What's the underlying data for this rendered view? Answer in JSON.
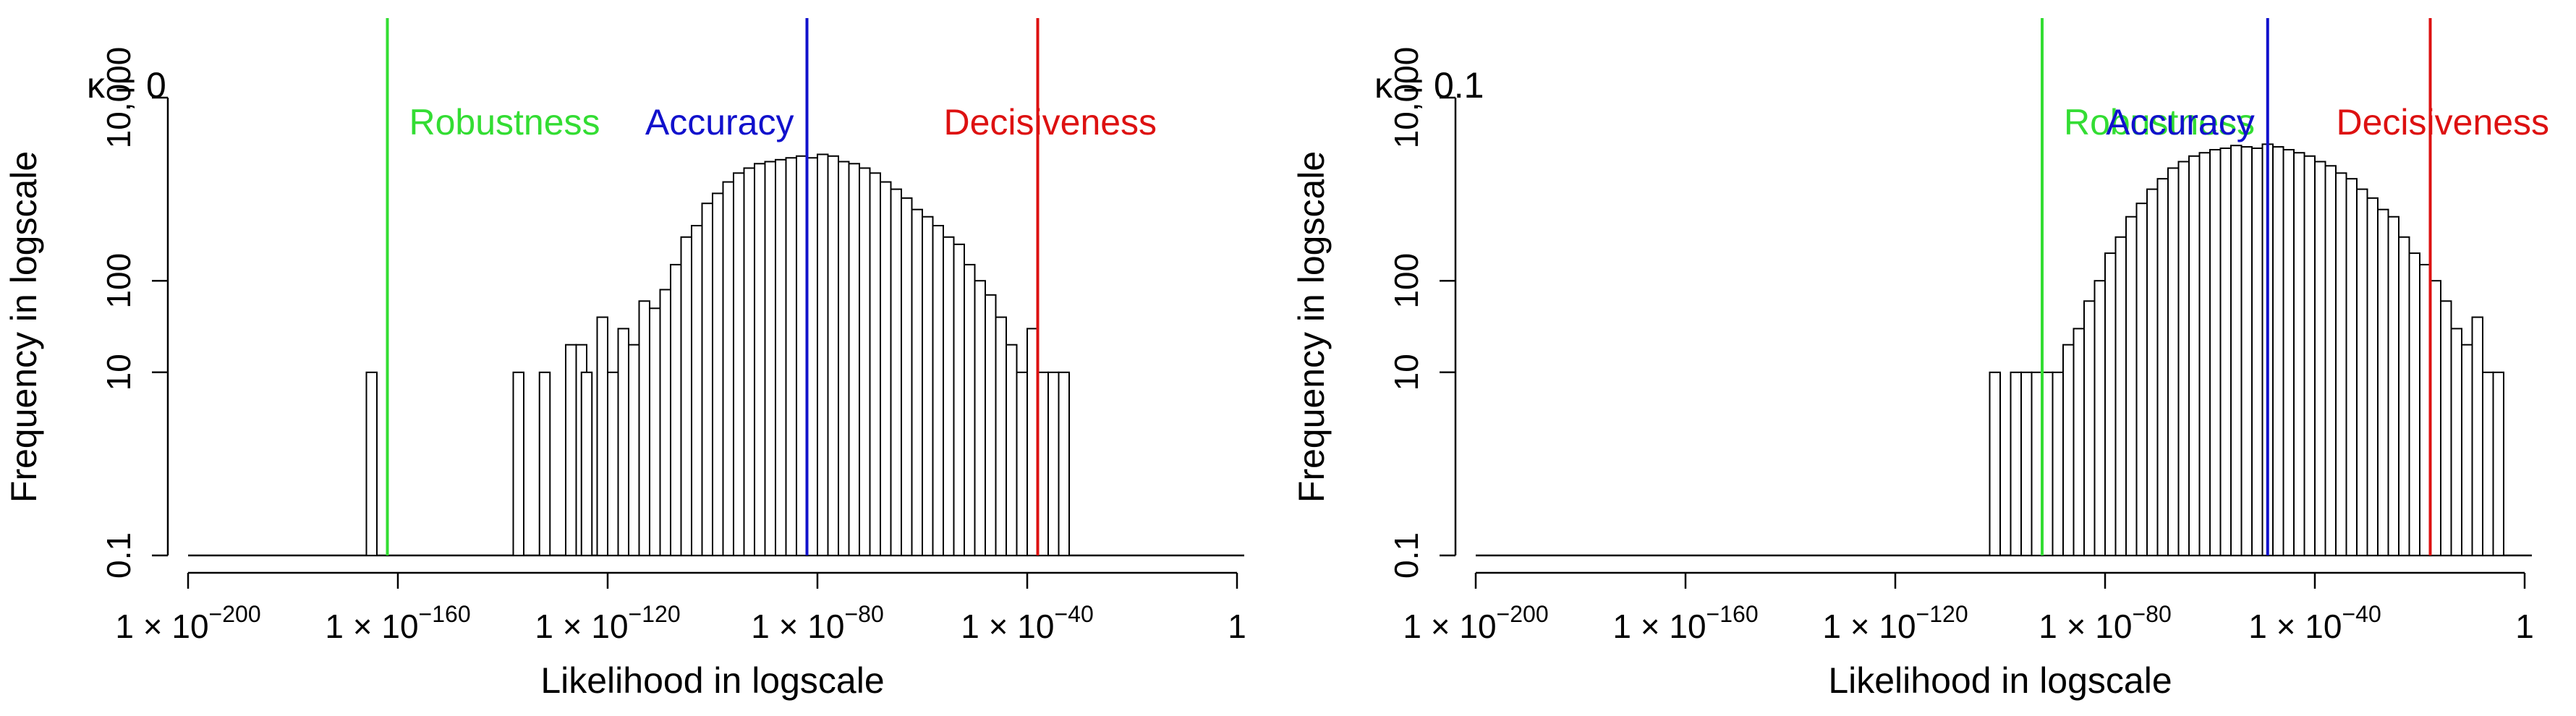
{
  "chart_data": [
    {
      "type": "bar",
      "panel_label": "κ = 0",
      "title": "",
      "xlabel": "Likelihood in logscale",
      "ylabel": "Frequency in logscale",
      "xscale": "log10",
      "yscale": "log10",
      "xlim_exponent": [
        -200,
        0
      ],
      "ylim_exponent": [
        -1,
        4
      ],
      "bin_width_exponent": 2,
      "x_ticks": [
        {
          "exponent": -200,
          "label": "1 × 10",
          "sup": "−200"
        },
        {
          "exponent": -160,
          "label": "1 × 10",
          "sup": "−160"
        },
        {
          "exponent": -120,
          "label": "1 × 10",
          "sup": "−120"
        },
        {
          "exponent": -80,
          "label": "1 × 10",
          "sup": "−80"
        },
        {
          "exponent": -40,
          "label": "1 × 10",
          "sup": "−40"
        },
        {
          "exponent": 0,
          "label": "1",
          "sup": ""
        }
      ],
      "y_ticks": [
        {
          "value": 0.1,
          "label": "0.1"
        },
        {
          "value": 10,
          "label": "10"
        },
        {
          "value": 100,
          "label": "100"
        },
        {
          "value": 10000,
          "label": "10,000"
        }
      ],
      "baseline": 0.1,
      "bin_start_exponents": [
        -166,
        -138,
        -133,
        -128,
        -126,
        -125,
        -122,
        -120,
        -118,
        -116,
        -114,
        -112,
        -110,
        -108,
        -106,
        -104,
        -102,
        -100,
        -98,
        -96,
        -94,
        -92,
        -90,
        -88,
        -86,
        -84,
        -82,
        -80,
        -78,
        -76,
        -74,
        -72,
        -70,
        -68,
        -66,
        -64,
        -62,
        -60,
        -58,
        -56,
        -54,
        -52,
        -50,
        -48,
        -46,
        -44,
        -42,
        -40,
        -38,
        -36,
        -34
      ],
      "counts": [
        10,
        10,
        10,
        20,
        20,
        10,
        40,
        10,
        30,
        20,
        60,
        50,
        80,
        150,
        300,
        400,
        700,
        900,
        1200,
        1500,
        1700,
        1900,
        2000,
        2100,
        2200,
        2300,
        2200,
        2400,
        2300,
        2000,
        1900,
        1700,
        1500,
        1200,
        1000,
        800,
        600,
        500,
        400,
        300,
        250,
        150,
        100,
        70,
        40,
        20,
        10,
        30,
        10,
        10,
        10
      ],
      "vlines": [
        {
          "name": "Robustness",
          "color": "#33dd33",
          "exponent": -162
        },
        {
          "name": "Accuracy",
          "color": "#1111cc",
          "exponent": -82
        },
        {
          "name": "Decisiveness",
          "color": "#dd1111",
          "exponent": -38
        }
      ]
    },
    {
      "type": "bar",
      "panel_label": "κ = 0.1",
      "title": "",
      "xlabel": "Likelihood in logscale",
      "ylabel": "Frequency in logscale",
      "xscale": "log10",
      "yscale": "log10",
      "xlim_exponent": [
        -200,
        0
      ],
      "ylim_exponent": [
        -1,
        4
      ],
      "bin_width_exponent": 2,
      "x_ticks": [
        {
          "exponent": -200,
          "label": "1 × 10",
          "sup": "−200"
        },
        {
          "exponent": -160,
          "label": "1 × 10",
          "sup": "−160"
        },
        {
          "exponent": -120,
          "label": "1 × 10",
          "sup": "−120"
        },
        {
          "exponent": -80,
          "label": "1 × 10",
          "sup": "−80"
        },
        {
          "exponent": -40,
          "label": "1 × 10",
          "sup": "−40"
        },
        {
          "exponent": 0,
          "label": "1",
          "sup": ""
        }
      ],
      "y_ticks": [
        {
          "value": 0.1,
          "label": "0.1"
        },
        {
          "value": 10,
          "label": "10"
        },
        {
          "value": 100,
          "label": "100"
        },
        {
          "value": 10000,
          "label": "10,000"
        }
      ],
      "baseline": 0.1,
      "bin_start_exponents": [
        -102,
        -98,
        -96,
        -94,
        -92,
        -90,
        -88,
        -86,
        -84,
        -82,
        -80,
        -78,
        -76,
        -74,
        -72,
        -70,
        -68,
        -66,
        -64,
        -62,
        -60,
        -58,
        -56,
        -54,
        -52,
        -50,
        -48,
        -46,
        -44,
        -42,
        -40,
        -38,
        -36,
        -34,
        -32,
        -30,
        -28,
        -26,
        -24,
        -22,
        -20,
        -18,
        -16,
        -14,
        -12,
        -10,
        -8,
        -6
      ],
      "counts": [
        10,
        10,
        10,
        10,
        10,
        10,
        20,
        30,
        60,
        100,
        200,
        300,
        500,
        700,
        1000,
        1300,
        1700,
        2000,
        2300,
        2500,
        2700,
        2800,
        3000,
        2900,
        2800,
        3100,
        2900,
        2700,
        2500,
        2300,
        2000,
        1800,
        1500,
        1300,
        1000,
        800,
        600,
        500,
        300,
        200,
        150,
        100,
        60,
        30,
        20,
        40,
        10,
        10
      ],
      "vlines": [
        {
          "name": "Robustness",
          "color": "#33dd33",
          "exponent": -92
        },
        {
          "name": "Accuracy",
          "color": "#1111cc",
          "exponent": -49
        },
        {
          "name": "Decisiveness",
          "color": "#dd1111",
          "exponent": -18
        }
      ]
    }
  ]
}
